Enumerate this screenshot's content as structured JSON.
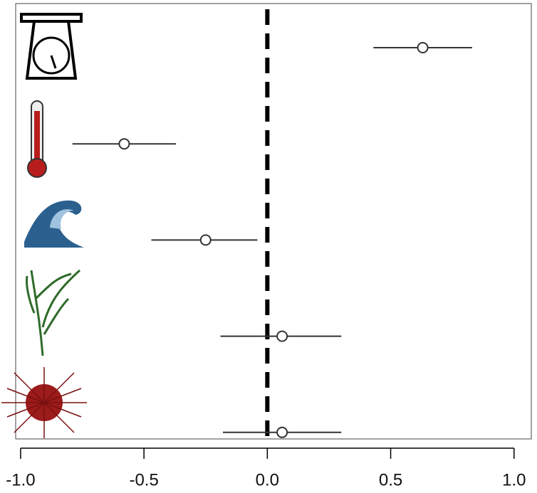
{
  "chart_data": {
    "type": "forest",
    "categories": [
      null,
      null,
      null,
      null,
      null
    ],
    "values": [
      0.63,
      -0.58,
      -0.25,
      0.06,
      0.06
    ],
    "lower": [
      0.43,
      -0.79,
      -0.47,
      -0.19,
      -0.18
    ],
    "upper": [
      0.83,
      -0.37,
      -0.04,
      0.3,
      0.3
    ],
    "reference_line": 0,
    "xlim": [
      -1.02,
      1.07
    ],
    "xticks": [
      {
        "value": -1.0,
        "label": "-1.0"
      },
      -0.5,
      {
        "value": 0.0,
        "label": "0.0"
      },
      0.5,
      {
        "value": 1.0,
        "label": "1.0"
      }
    ],
    "color": "#333333"
  }
}
